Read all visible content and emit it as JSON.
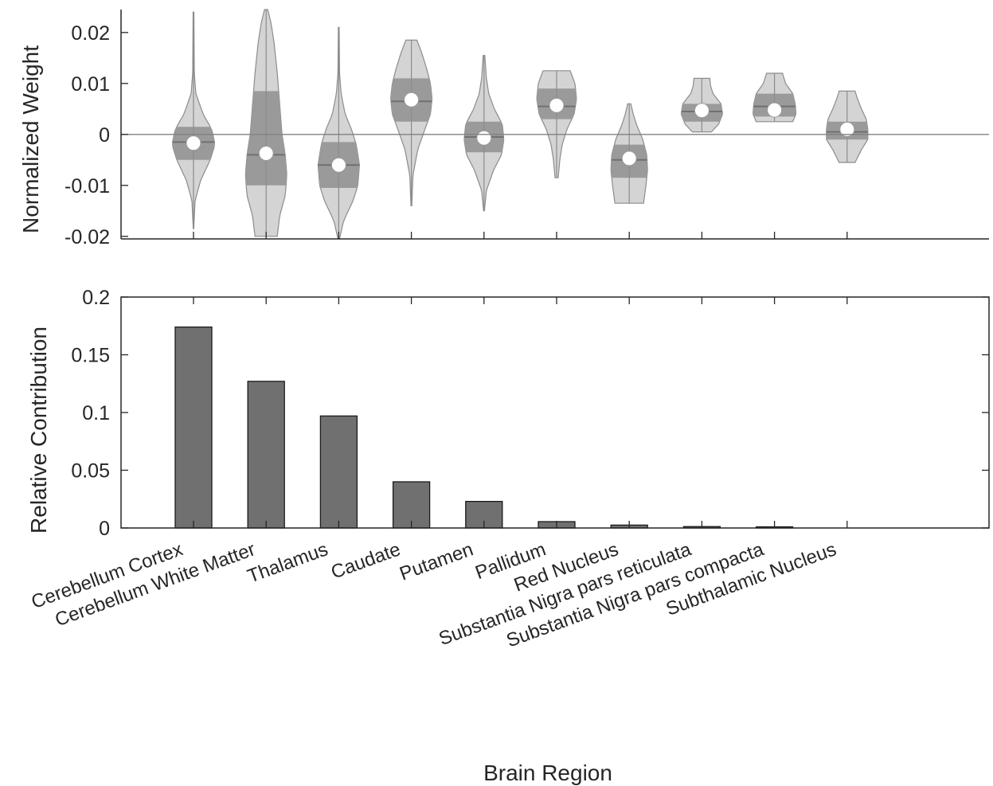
{
  "colors": {
    "violin_fill": "#d4d4d4",
    "iqr_fill": "#9a9a9a",
    "median_line": "#707070",
    "bar_fill": "#707070",
    "axis": "#262626",
    "zero_line": "#808080",
    "mean_marker": "#ffffff"
  },
  "chart_data": [
    {
      "type": "violin",
      "ylabel": "Normalized Weight",
      "ylim": [
        -0.0205,
        0.0245
      ],
      "yticks": [
        -0.02,
        -0.01,
        0,
        0.01,
        0.02
      ],
      "ytick_labels": [
        "-0.02",
        "-0.01",
        "0",
        "0.01",
        "0.02"
      ],
      "zero_line": true,
      "categories": [
        "Cerebellum Cortex",
        "Cerebellum White Matter",
        "Thalamus",
        "Caudate",
        "Putamen",
        "Pallidum",
        "Red Nucleus",
        "Substantia Nigra pars reticulata",
        "Substantia Nigra pars compacta",
        "Subthalamic Nucleus"
      ],
      "violins": [
        {
          "min": -0.0185,
          "max": 0.024,
          "q1": -0.005,
          "median": -0.0015,
          "q3": 0.0015,
          "mean": -0.0017,
          "profile": [
            [
              -0.0185,
              0.3
            ],
            [
              -0.013,
              2
            ],
            [
              -0.009,
              9
            ],
            [
              -0.005,
              21
            ],
            [
              -0.002,
              27
            ],
            [
              0.001,
              23
            ],
            [
              0.004,
              12
            ],
            [
              0.008,
              3
            ],
            [
              0.012,
              1
            ],
            [
              0.024,
              0.5
            ]
          ]
        },
        {
          "min": -0.02,
          "max": 0.0245,
          "q1": -0.01,
          "median": -0.004,
          "q3": 0.0085,
          "mean": -0.0037,
          "profile": [
            [
              -0.02,
              14
            ],
            [
              -0.016,
              17
            ],
            [
              -0.012,
              24
            ],
            [
              -0.008,
              26
            ],
            [
              -0.004,
              24
            ],
            [
              0,
              20
            ],
            [
              0.006,
              17
            ],
            [
              0.012,
              14
            ],
            [
              0.018,
              10
            ],
            [
              0.022,
              6
            ],
            [
              0.0245,
              2
            ]
          ]
        },
        {
          "min": -0.0205,
          "max": 0.021,
          "q1": -0.0105,
          "median": -0.006,
          "q3": -0.0015,
          "mean": -0.006,
          "profile": [
            [
              -0.0205,
              1
            ],
            [
              -0.017,
              6
            ],
            [
              -0.013,
              18
            ],
            [
              -0.01,
              24
            ],
            [
              -0.006,
              26
            ],
            [
              -0.002,
              22
            ],
            [
              0.001,
              16
            ],
            [
              0.004,
              8
            ],
            [
              0.008,
              3
            ],
            [
              0.012,
              1
            ],
            [
              0.021,
              0.5
            ]
          ]
        },
        {
          "min": -0.014,
          "max": 0.0185,
          "q1": 0.0025,
          "median": 0.0065,
          "q3": 0.011,
          "mean": 0.0068,
          "profile": [
            [
              -0.014,
              0.5
            ],
            [
              -0.008,
              2
            ],
            [
              -0.003,
              8
            ],
            [
              0.001,
              17
            ],
            [
              0.004,
              24
            ],
            [
              0.007,
              26
            ],
            [
              0.01,
              24
            ],
            [
              0.013,
              19
            ],
            [
              0.016,
              13
            ],
            [
              0.0185,
              7
            ]
          ]
        },
        {
          "min": -0.015,
          "max": 0.0155,
          "q1": -0.0035,
          "median": -0.0005,
          "q3": 0.0025,
          "mean": -0.0007,
          "profile": [
            [
              -0.015,
              0.5
            ],
            [
              -0.011,
              3
            ],
            [
              -0.007,
              12
            ],
            [
              -0.004,
              22
            ],
            [
              -0.001,
              25
            ],
            [
              0.002,
              23
            ],
            [
              0.005,
              13
            ],
            [
              0.008,
              6
            ],
            [
              0.011,
              3
            ],
            [
              0.0155,
              1
            ]
          ]
        },
        {
          "min": -0.0085,
          "max": 0.0125,
          "q1": 0.003,
          "median": 0.0055,
          "q3": 0.009,
          "mean": 0.0057,
          "profile": [
            [
              -0.0085,
              2
            ],
            [
              -0.005,
              4
            ],
            [
              -0.002,
              7
            ],
            [
              0.001,
              13
            ],
            [
              0.004,
              22
            ],
            [
              0.007,
              25
            ],
            [
              0.01,
              23
            ],
            [
              0.0125,
              17
            ]
          ]
        },
        {
          "min": -0.0135,
          "max": 0.006,
          "q1": -0.0085,
          "median": -0.005,
          "q3": -0.002,
          "mean": -0.0047,
          "profile": [
            [
              -0.0135,
              18
            ],
            [
              -0.01,
              21
            ],
            [
              -0.007,
              23
            ],
            [
              -0.004,
              22
            ],
            [
              -0.001,
              17
            ],
            [
              0.002,
              9
            ],
            [
              0.004,
              5
            ],
            [
              0.006,
              2
            ]
          ]
        },
        {
          "min": 0.0005,
          "max": 0.011,
          "q1": 0.0025,
          "median": 0.0045,
          "q3": 0.006,
          "mean": 0.0047,
          "profile": [
            [
              0.0005,
              12
            ],
            [
              0.002,
              21
            ],
            [
              0.004,
              26
            ],
            [
              0.006,
              24
            ],
            [
              0.008,
              14
            ],
            [
              0.0095,
              11
            ],
            [
              0.011,
              10
            ]
          ]
        },
        {
          "min": 0.0025,
          "max": 0.012,
          "q1": 0.0035,
          "median": 0.0055,
          "q3": 0.008,
          "mean": 0.0048,
          "profile": [
            [
              0.0025,
              23
            ],
            [
              0.004,
              27
            ],
            [
              0.006,
              26
            ],
            [
              0.008,
              23
            ],
            [
              0.01,
              14
            ],
            [
              0.012,
              10
            ]
          ]
        },
        {
          "min": -0.0055,
          "max": 0.0085,
          "q1": -0.001,
          "median": 0.0005,
          "q3": 0.0025,
          "mean": 0.001,
          "profile": [
            [
              -0.0055,
              10
            ],
            [
              -0.003,
              18
            ],
            [
              -0.001,
              26
            ],
            [
              0.001,
              26
            ],
            [
              0.003,
              24
            ],
            [
              0.005,
              18
            ],
            [
              0.007,
              13
            ],
            [
              0.0085,
              10
            ]
          ]
        }
      ]
    },
    {
      "type": "bar",
      "ylabel": "Relative Contribution",
      "xlabel": "Brain Region",
      "ylim": [
        0,
        0.2
      ],
      "yticks": [
        0,
        0.05,
        0.1,
        0.15,
        0.2
      ],
      "ytick_labels": [
        "0",
        "0.05",
        "0.1",
        "0.15",
        "0.2"
      ],
      "categories": [
        "Cerebellum Cortex",
        "Cerebellum White Matter",
        "Thalamus",
        "Caudate",
        "Putamen",
        "Pallidum",
        "Red Nucleus",
        "Substantia Nigra pars reticulata",
        "Substantia Nigra pars compacta",
        "Subthalamic Nucleus"
      ],
      "values": [
        0.174,
        0.127,
        0.097,
        0.04,
        0.023,
        0.0055,
        0.0025,
        0.0012,
        0.001,
        0.0
      ]
    }
  ]
}
